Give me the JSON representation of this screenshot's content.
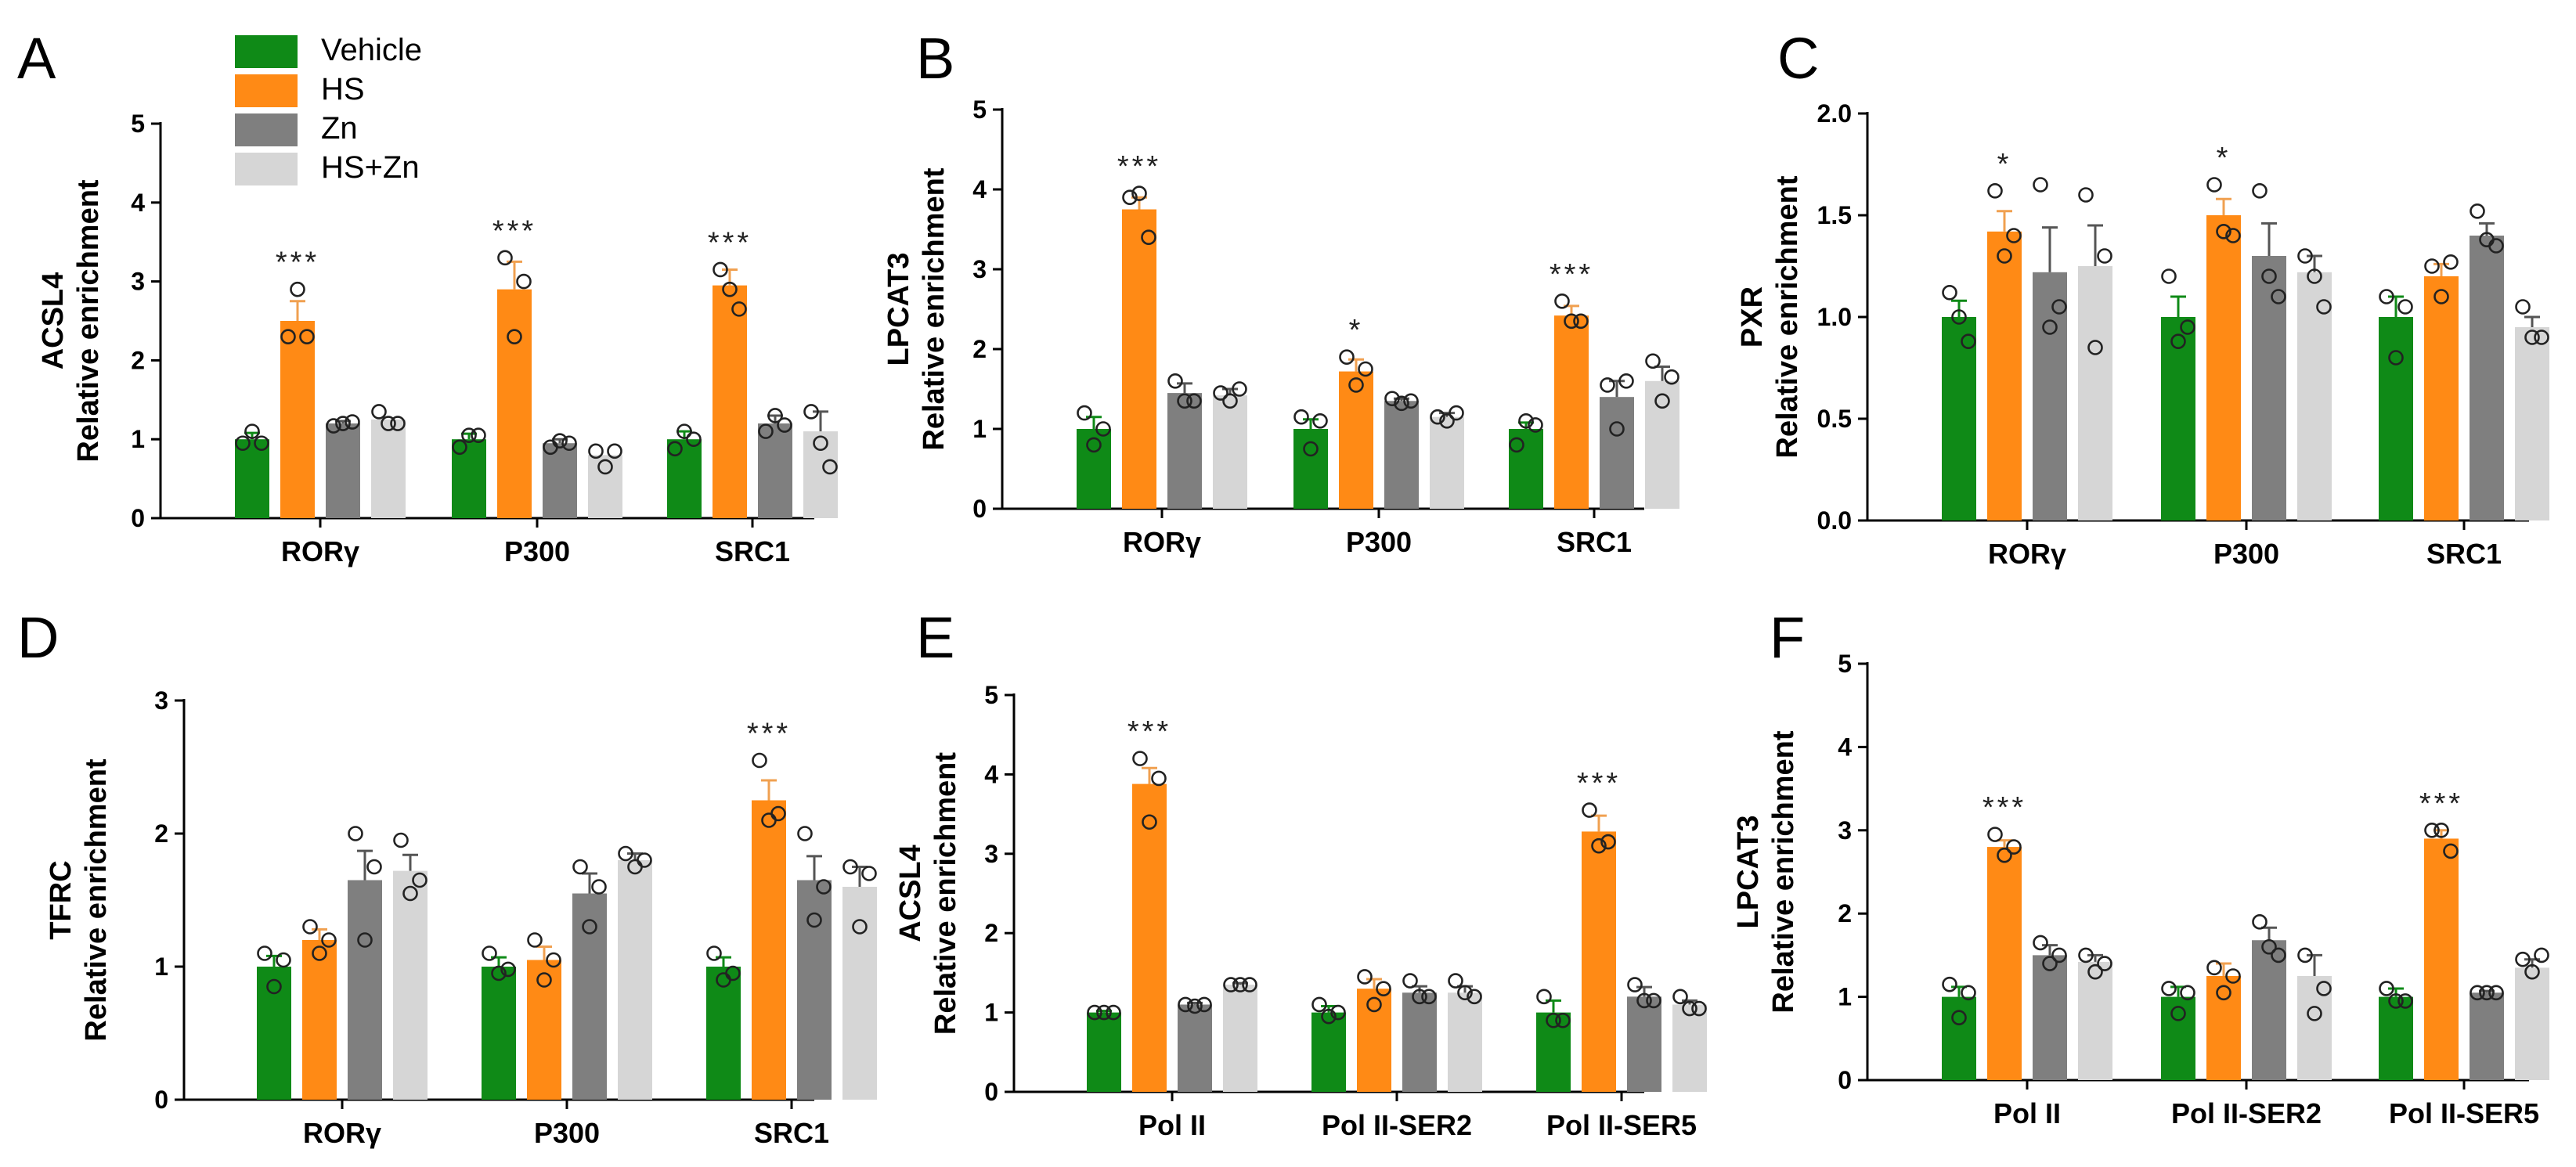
{
  "colors": {
    "Vehicle": "#0f8a17",
    "HS": "#ff8a15",
    "Zn": "#7f7f7f",
    "HS+Zn": "#d6d6d6"
  },
  "legend": [
    "Vehicle",
    "HS",
    "Zn",
    "HS+Zn"
  ],
  "chart_data": [
    {
      "panel": "A",
      "type": "bar",
      "ylabel_line1": "ACSL4",
      "ylabel_line2": "Relative enrichment",
      "ylim": [
        0,
        5
      ],
      "yticks": [
        "0",
        "1",
        "2",
        "3",
        "4",
        "5"
      ],
      "categories": [
        "RORγ",
        "P300",
        "SRC1"
      ],
      "series": [
        {
          "name": "Vehicle",
          "values": [
            1.0,
            1.0,
            1.0
          ],
          "errors": [
            0.08,
            0.07,
            0.1
          ],
          "points": [
            [
              0.95,
              1.1,
              0.95
            ],
            [
              0.9,
              1.05,
              1.05
            ],
            [
              0.88,
              1.1,
              1.0
            ]
          ]
        },
        {
          "name": "HS",
          "values": [
            2.5,
            2.9,
            2.95
          ],
          "errors": [
            0.25,
            0.35,
            0.2
          ],
          "points": [
            [
              2.3,
              2.9,
              2.3
            ],
            [
              3.3,
              2.3,
              3.0
            ],
            [
              3.15,
              2.9,
              2.65
            ]
          ]
        },
        {
          "name": "Zn",
          "values": [
            1.2,
            0.95,
            1.2
          ],
          "errors": [
            0.03,
            0.05,
            0.1
          ],
          "points": [
            [
              1.17,
              1.2,
              1.22
            ],
            [
              0.9,
              0.98,
              0.95
            ],
            [
              1.1,
              1.3,
              1.18
            ]
          ]
        },
        {
          "name": "HS+Zn",
          "values": [
            1.25,
            0.8,
            1.1
          ],
          "errors": [
            0.0,
            0.0,
            0.25
          ],
          "points": [
            [
              1.35,
              1.2,
              1.2
            ],
            [
              0.85,
              0.65,
              0.85
            ],
            [
              1.35,
              0.95,
              0.65
            ]
          ]
        }
      ],
      "significance": [
        "***",
        "***",
        "***"
      ]
    },
    {
      "panel": "B",
      "type": "bar",
      "ylabel_line1": "LPCAT3",
      "ylabel_line2": "Relative enrichment",
      "ylim": [
        0,
        5
      ],
      "yticks": [
        "0",
        "1",
        "2",
        "3",
        "4",
        "5"
      ],
      "categories": [
        "RORγ",
        "P300",
        "SRC1"
      ],
      "series": [
        {
          "name": "Vehicle",
          "values": [
            1.0,
            1.0,
            1.0
          ],
          "errors": [
            0.15,
            0.12,
            0.08
          ],
          "points": [
            [
              1.2,
              0.8,
              1.0
            ],
            [
              1.15,
              0.75,
              1.1
            ],
            [
              0.8,
              1.1,
              1.05
            ]
          ]
        },
        {
          "name": "HS",
          "values": [
            3.75,
            1.72,
            2.42
          ],
          "errors": [
            0.15,
            0.15,
            0.12
          ],
          "points": [
            [
              3.9,
              3.95,
              3.4
            ],
            [
              1.9,
              1.55,
              1.75
            ],
            [
              2.6,
              2.35,
              2.35
            ]
          ]
        },
        {
          "name": "Zn",
          "values": [
            1.45,
            1.35,
            1.4
          ],
          "errors": [
            0.12,
            0.03,
            0.2
          ],
          "points": [
            [
              1.6,
              1.35,
              1.35
            ],
            [
              1.38,
              1.32,
              1.35
            ],
            [
              1.55,
              1.0,
              1.6
            ]
          ]
        },
        {
          "name": "HS+Zn",
          "values": [
            1.42,
            1.15,
            1.6
          ],
          "errors": [
            0.08,
            0.05,
            0.18
          ],
          "points": [
            [
              1.45,
              1.35,
              1.5
            ],
            [
              1.15,
              1.1,
              1.2
            ],
            [
              1.85,
              1.35,
              1.65
            ]
          ]
        }
      ],
      "significance": [
        "***",
        "*",
        "***"
      ]
    },
    {
      "panel": "C",
      "type": "bar",
      "ylabel_line1": "PXR",
      "ylabel_line2": "Relative enrichment",
      "ylim": [
        0,
        2
      ],
      "yticks": [
        "0.0",
        "0.5",
        "1.0",
        "1.5",
        "2.0"
      ],
      "categories": [
        "RORγ",
        "P300",
        "SRC1"
      ],
      "series": [
        {
          "name": "Vehicle",
          "values": [
            1.0,
            1.0,
            1.0
          ],
          "errors": [
            0.08,
            0.1,
            0.1
          ],
          "points": [
            [
              1.12,
              1.0,
              0.88
            ],
            [
              1.2,
              0.88,
              0.95
            ],
            [
              1.1,
              0.8,
              1.05
            ]
          ]
        },
        {
          "name": "HS",
          "values": [
            1.42,
            1.5,
            1.2
          ],
          "errors": [
            0.1,
            0.08,
            0.06
          ],
          "points": [
            [
              1.62,
              1.3,
              1.4
            ],
            [
              1.65,
              1.42,
              1.4
            ],
            [
              1.25,
              1.1,
              1.27
            ]
          ]
        },
        {
          "name": "Zn",
          "values": [
            1.22,
            1.3,
            1.4
          ],
          "errors": [
            0.22,
            0.16,
            0.06
          ],
          "points": [
            [
              1.65,
              0.95,
              1.05
            ],
            [
              1.62,
              1.2,
              1.1
            ],
            [
              1.52,
              1.38,
              1.35
            ]
          ]
        },
        {
          "name": "HS+Zn",
          "values": [
            1.25,
            1.22,
            0.95
          ],
          "errors": [
            0.2,
            0.08,
            0.05
          ],
          "points": [
            [
              1.6,
              0.85,
              1.3
            ],
            [
              1.3,
              1.2,
              1.05
            ],
            [
              1.05,
              0.9,
              0.9
            ]
          ]
        }
      ],
      "significance": [
        "*",
        "*",
        ""
      ]
    },
    {
      "panel": "D",
      "type": "bar",
      "ylabel_line1": "TFRC",
      "ylabel_line2": "Relative enrichment",
      "ylim": [
        0,
        3
      ],
      "yticks": [
        "0",
        "1",
        "2",
        "3"
      ],
      "categories": [
        "RORγ",
        "P300",
        "SRC1"
      ],
      "series": [
        {
          "name": "Vehicle",
          "values": [
            1.0,
            1.0,
            1.0
          ],
          "errors": [
            0.08,
            0.07,
            0.07
          ],
          "points": [
            [
              1.1,
              0.85,
              1.05
            ],
            [
              1.1,
              0.95,
              0.98
            ],
            [
              1.1,
              0.9,
              0.95
            ]
          ]
        },
        {
          "name": "HS",
          "values": [
            1.2,
            1.05,
            2.25
          ],
          "errors": [
            0.08,
            0.1,
            0.15
          ],
          "points": [
            [
              1.3,
              1.1,
              1.2
            ],
            [
              1.2,
              0.9,
              1.05
            ],
            [
              2.55,
              2.1,
              2.15
            ]
          ]
        },
        {
          "name": "Zn",
          "values": [
            1.65,
            1.55,
            1.65
          ],
          "errors": [
            0.22,
            0.15,
            0.18
          ],
          "points": [
            [
              2.0,
              1.2,
              1.75
            ],
            [
              1.75,
              1.3,
              1.6
            ],
            [
              2.0,
              1.35,
              1.6
            ]
          ]
        },
        {
          "name": "HS+Zn",
          "values": [
            1.72,
            1.8,
            1.6
          ],
          "errors": [
            0.12,
            0.05,
            0.15
          ],
          "points": [
            [
              1.95,
              1.55,
              1.65
            ],
            [
              1.85,
              1.75,
              1.8
            ],
            [
              1.75,
              1.3,
              1.7
            ]
          ]
        }
      ],
      "significance": [
        "",
        "",
        "***"
      ]
    },
    {
      "panel": "E",
      "type": "bar",
      "ylabel_line1": "ACSL4",
      "ylabel_line2": "Relative enrichment",
      "ylim": [
        0,
        5
      ],
      "yticks": [
        "0",
        "1",
        "2",
        "3",
        "4",
        "5"
      ],
      "categories": [
        "Pol II",
        "Pol II-SER2",
        "Pol II-SER5"
      ],
      "series": [
        {
          "name": "Vehicle",
          "values": [
            1.0,
            1.0,
            1.0
          ],
          "errors": [
            0.02,
            0.08,
            0.15
          ],
          "points": [
            [
              1.0,
              1.0,
              1.0
            ],
            [
              1.1,
              0.95,
              1.0
            ],
            [
              1.2,
              0.9,
              0.9
            ]
          ]
        },
        {
          "name": "HS",
          "values": [
            3.88,
            1.3,
            3.28
          ],
          "errors": [
            0.2,
            0.12,
            0.2
          ],
          "points": [
            [
              4.2,
              3.4,
              3.95
            ],
            [
              1.45,
              1.1,
              1.3
            ],
            [
              3.55,
              3.1,
              3.15
            ]
          ]
        },
        {
          "name": "Zn",
          "values": [
            1.1,
            1.25,
            1.2
          ],
          "errors": [
            0.02,
            0.08,
            0.12
          ],
          "points": [
            [
              1.1,
              1.08,
              1.1
            ],
            [
              1.4,
              1.2,
              1.2
            ],
            [
              1.35,
              1.15,
              1.15
            ]
          ]
        },
        {
          "name": "HS+Zn",
          "values": [
            1.35,
            1.25,
            1.1
          ],
          "errors": [
            0.02,
            0.08,
            0.05
          ],
          "points": [
            [
              1.35,
              1.35,
              1.35
            ],
            [
              1.4,
              1.25,
              1.2
            ],
            [
              1.2,
              1.05,
              1.05
            ]
          ]
        }
      ],
      "significance": [
        "***",
        "",
        "***"
      ]
    },
    {
      "panel": "F",
      "type": "bar",
      "ylabel_line1": "LPCAT3",
      "ylabel_line2": "Relative enrichment",
      "ylim": [
        0,
        5
      ],
      "yticks": [
        "0",
        "1",
        "2",
        "3",
        "4",
        "5"
      ],
      "categories": [
        "Pol II",
        "Pol II-SER2",
        "Pol II-SER5"
      ],
      "series": [
        {
          "name": "Vehicle",
          "values": [
            1.0,
            1.0,
            1.0
          ],
          "errors": [
            0.12,
            0.12,
            0.1
          ],
          "points": [
            [
              1.15,
              0.75,
              1.05
            ],
            [
              1.1,
              0.8,
              1.05
            ],
            [
              1.1,
              0.95,
              0.95
            ]
          ]
        },
        {
          "name": "HS",
          "values": [
            2.8,
            1.25,
            2.9
          ],
          "errors": [
            0.08,
            0.15,
            0.1
          ],
          "points": [
            [
              2.95,
              2.7,
              2.8
            ],
            [
              1.35,
              1.05,
              1.25
            ],
            [
              3.0,
              3.0,
              2.75
            ]
          ]
        },
        {
          "name": "Zn",
          "values": [
            1.5,
            1.68,
            1.05
          ],
          "errors": [
            0.12,
            0.15,
            0.02
          ],
          "points": [
            [
              1.65,
              1.4,
              1.5
            ],
            [
              1.9,
              1.6,
              1.5
            ],
            [
              1.05,
              1.05,
              1.05
            ]
          ]
        },
        {
          "name": "HS+Zn",
          "values": [
            1.42,
            1.25,
            1.35
          ],
          "errors": [
            0.08,
            0.25,
            0.1
          ],
          "points": [
            [
              1.5,
              1.3,
              1.4
            ],
            [
              1.5,
              0.8,
              1.1
            ],
            [
              1.45,
              1.3,
              1.5
            ]
          ]
        }
      ],
      "significance": [
        "***",
        "",
        "***"
      ]
    }
  ]
}
